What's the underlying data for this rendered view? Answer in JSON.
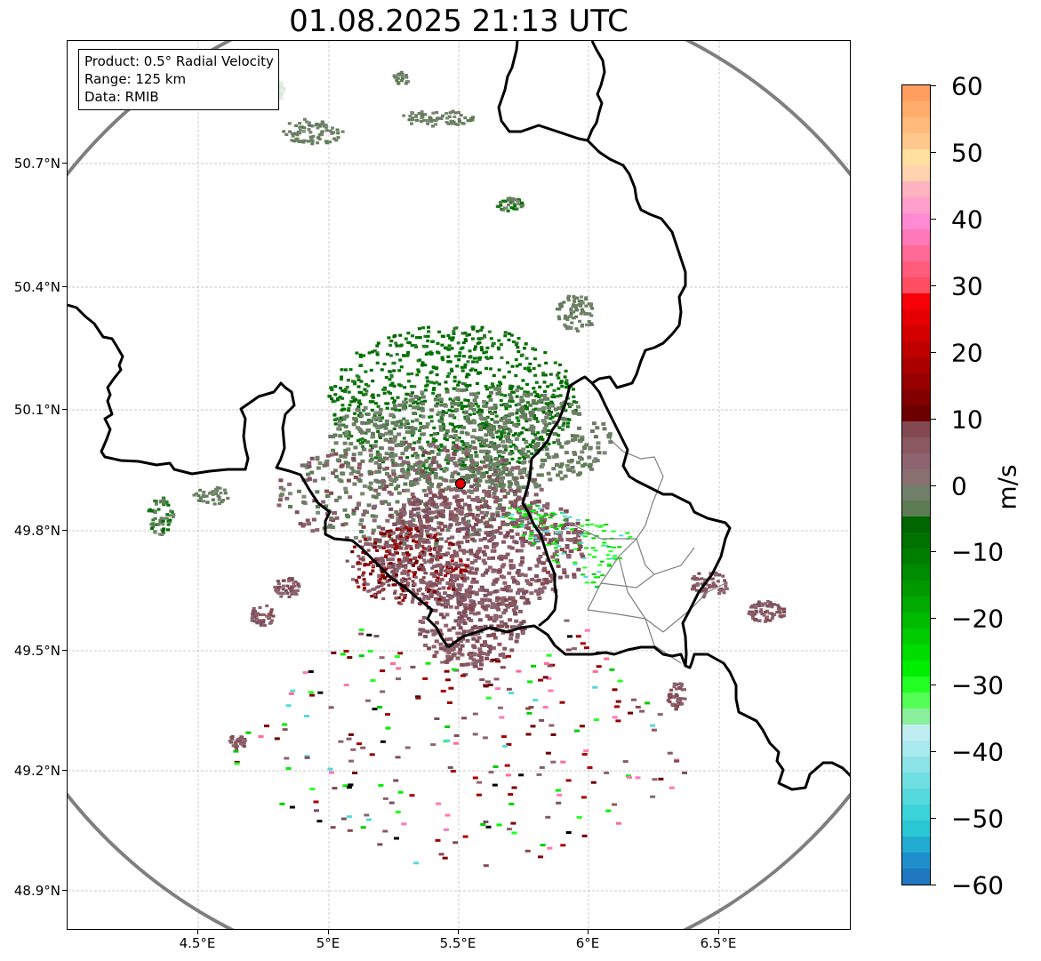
{
  "title": "01.08.2025 21:13 UTC",
  "info_box": {
    "product": "Product: 0.5° Radial Velocity",
    "range": "Range: 125 km",
    "data": "Data: RMIB"
  },
  "axes": {
    "y_ticks": [
      "50.7°N",
      "50.4°N",
      "50.1°N",
      "49.8°N",
      "49.5°N",
      "49.2°N",
      "48.9°N"
    ],
    "x_ticks": [
      "4.5°E",
      "5°E",
      "5.5°E",
      "6°E",
      "6.5°E"
    ]
  },
  "colorbar": {
    "unit": "m/s",
    "ticks": [
      "60",
      "50",
      "40",
      "30",
      "20",
      "10",
      "0",
      "−10",
      "−20",
      "−30",
      "−40",
      "−50",
      "−60"
    ],
    "colors_top_to_bottom": [
      "#ff9e5e",
      "#ffac6c",
      "#ffbb7c",
      "#ffc98d",
      "#ffe09e",
      "#ffd3b0",
      "#ffb3c0",
      "#ff9fcc",
      "#ff8ad4",
      "#ff78b8",
      "#ff6a96",
      "#ff5c7c",
      "#ff4d62",
      "#f70008",
      "#e60004",
      "#d40000",
      "#c00000",
      "#ab0000",
      "#960000",
      "#820000",
      "#6c0000",
      "#824a50",
      "#8a5962",
      "#8e6470",
      "#8a7070",
      "#70806a",
      "#5d7c55",
      "#006600",
      "#007200",
      "#007e00",
      "#008c00",
      "#009a00",
      "#00aa00",
      "#00bb00",
      "#00cc00",
      "#00dd00",
      "#00ee00",
      "#24ff24",
      "#55ff55",
      "#8aef9a",
      "#c0eef0",
      "#a8eaee",
      "#8ce4e8",
      "#70dfe2",
      "#55d9dc",
      "#3ad3d8",
      "#2ac8d4",
      "#22acd2",
      "#1f8fcc",
      "#1f78c0"
    ]
  },
  "radar": {
    "site_marker": "radar-site"
  }
}
